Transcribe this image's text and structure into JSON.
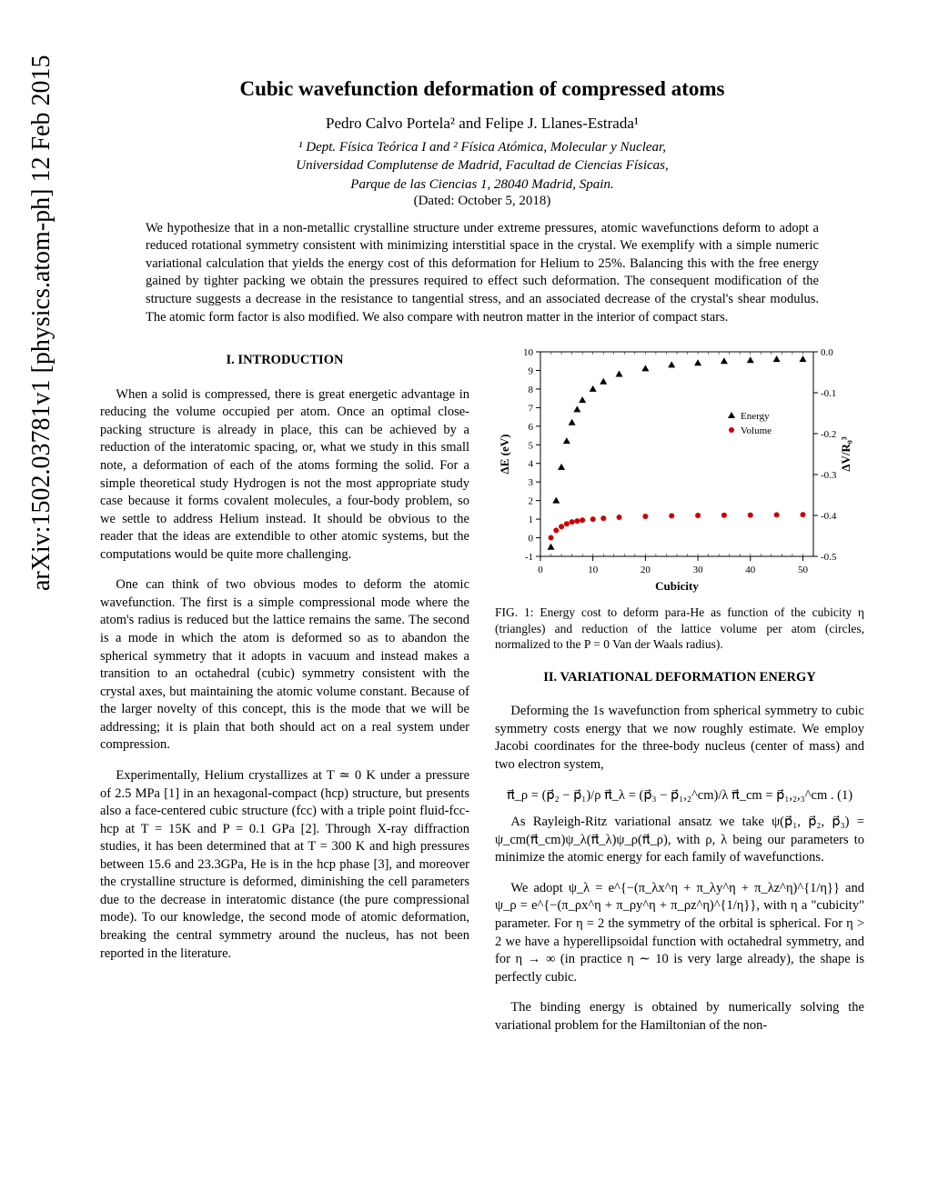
{
  "arxiv_id": "arXiv:1502.03781v1  [physics.atom-ph]  12 Feb 2015",
  "title": "Cubic wavefunction deformation of compressed atoms",
  "authors": "Pedro Calvo Portela² and Felipe J. Llanes-Estrada¹",
  "affil_line1": "¹ Dept. Física Teórica I and ² Física Atómica, Molecular y Nuclear,",
  "affil_line2": "Universidad Complutense de Madrid, Facultad de Ciencias Físicas,",
  "affil_line3": "Parque de las Ciencias 1, 28040 Madrid, Spain.",
  "dated": "(Dated: October 5, 2018)",
  "abstract": "We hypothesize that in a non-metallic crystalline structure under extreme pressures, atomic wavefunctions deform to adopt a reduced rotational symmetry consistent with minimizing interstitial space in the crystal. We exemplify with a simple numeric variational calculation that yields the energy cost of this deformation for Helium to 25%. Balancing this with the free energy gained by tighter packing we obtain the pressures required to effect such deformation. The consequent modification of the structure suggests a decrease in the resistance to tangential stress, and an associated decrease of the crystal's shear modulus. The atomic form factor is also modified. We also compare with neutron matter in the interior of compact stars.",
  "sec1_head": "I.   INTRODUCTION",
  "intro_p1": "When a solid is compressed, there is great energetic advantage in reducing the volume occupied per atom. Once an optimal close-packing structure is already in place, this can be achieved by a reduction of the interatomic spacing, or, what we study in this small note, a deformation of each of the atoms forming the solid. For a simple theoretical study Hydrogen is not the most appropriate study case because it forms covalent molecules, a four-body problem, so we settle to address Helium instead. It should be obvious to the reader that the ideas are extendible to other atomic systems, but the computations would be quite more challenging.",
  "intro_p2": "One can think of two obvious modes to deform the atomic wavefunction. The first is a simple compressional mode where the atom's radius is reduced but the lattice remains the same. The second is a mode in which the atom is deformed so as to abandon the spherical symmetry that it adopts in vacuum and instead makes a transition to an octahedral (cubic) symmetry consistent with the crystal axes, but maintaining the atomic volume constant. Because of the larger novelty of this concept, this is the mode that we will be addressing; it is plain that both should act on a real system under compression.",
  "intro_p3": "Experimentally, Helium crystallizes at T ≃ 0 K under a pressure of 2.5 MPa [1] in an hexagonal-compact (hcp) structure, but presents also a face-centered cubic structure (fcc) with a triple point fluid-fcc-hcp at T = 15K and P = 0.1 GPa [2]. Through X-ray diffraction studies, it has been determined that at T = 300 K and high pressures between 15.6 and 23.3GPa, He is in the hcp phase [3], and moreover the crystalline structure is deformed, diminishing the cell parameters due to the decrease in interatomic distance (the pure compressional mode). To our knowledge, the second mode of atomic deformation, breaking the central symmetry around the nucleus, has not been reported in the literature.",
  "fig1_caption": "FIG. 1: Energy cost to deform para-He as function of the cubicity η (triangles) and reduction of the lattice volume per atom (circles, normalized to the P = 0 Van der Waals radius).",
  "sec2_head": "II.   VARIATIONAL DEFORMATION ENERGY",
  "body_p1": "Deforming the 1s wavefunction from spherical symmetry to cubic symmetry costs energy that we now roughly estimate. We employ Jacobi coordinates for the three-body nucleus (center of mass) and two electron system,",
  "eq1": "π⃗_ρ = (p⃗₂ − p⃗₁)/ρ      π⃗_λ = (p⃗₃ − p⃗₁,₂^cm)/λ      π⃗_cm = p⃗₁,₂,₃^cm .  (1)",
  "body_p2a": "As Rayleigh-Ritz variational ansatz we take ψ(p⃗₁, p⃗₂, p⃗₃) = ψ_cm(π⃗_cm)ψ_λ(π⃗_λ)ψ_ρ(π⃗_ρ), with ρ, λ being our parameters to minimize the atomic energy for each family of wavefunctions.",
  "body_p2b": "We adopt  ψ_λ = e^{−(π_λx^η + π_λy^η + π_λz^η)^{1/η}}  and  ψ_ρ = e^{−(π_ρx^η + π_ρy^η + π_ρz^η)^{1/η}}, with η a \"cubicity\" parameter. For η = 2 the symmetry of the orbital is spherical. For η > 2 we have a hyperellipsoidal function with octahedral symmetry, and for η → ∞ (in practice η ∼ 10 is very large already), the shape is perfectly cubic.",
  "body_p3": "The binding energy is obtained by numerically solving the variational problem for the Hamiltonian of the non-",
  "chart": {
    "type": "scatter",
    "xlim": [
      0,
      52
    ],
    "ylim_left": [
      -1,
      10
    ],
    "ylim_right": [
      -0.5,
      0.0
    ],
    "xticks": [
      0,
      10,
      20,
      30,
      40,
      50
    ],
    "yticks_left": [
      -1,
      0,
      1,
      2,
      3,
      4,
      5,
      6,
      7,
      8,
      9,
      10
    ],
    "yticks_right": [
      0.0,
      -0.1,
      -0.2,
      -0.3,
      -0.4,
      -0.5
    ],
    "xlabel": "Cubicity",
    "ylabel_left": "ΔE (eV)",
    "ylabel_right": "ΔV/R₀³",
    "energy_color": "#000000",
    "volume_color": "#cc0000",
    "background_color": "#ffffff",
    "axis_color": "#000000",
    "tick_fontsize": 11,
    "label_fontsize": 13,
    "legend_items": [
      "Energy",
      "Volume"
    ],
    "energy_marker": "triangle",
    "volume_marker": "circle",
    "energy_data": [
      {
        "x": 2,
        "y": -0.5
      },
      {
        "x": 3,
        "y": 2.0
      },
      {
        "x": 4,
        "y": 3.8
      },
      {
        "x": 5,
        "y": 5.2
      },
      {
        "x": 6,
        "y": 6.2
      },
      {
        "x": 7,
        "y": 6.9
      },
      {
        "x": 8,
        "y": 7.4
      },
      {
        "x": 10,
        "y": 8.0
      },
      {
        "x": 12,
        "y": 8.4
      },
      {
        "x": 15,
        "y": 8.8
      },
      {
        "x": 20,
        "y": 9.1
      },
      {
        "x": 25,
        "y": 9.3
      },
      {
        "x": 30,
        "y": 9.4
      },
      {
        "x": 35,
        "y": 9.5
      },
      {
        "x": 40,
        "y": 9.55
      },
      {
        "x": 45,
        "y": 9.6
      },
      {
        "x": 50,
        "y": 9.6
      }
    ],
    "volume_data": [
      {
        "x": 2,
        "y": 0.0
      },
      {
        "x": 3,
        "y": 0.4
      },
      {
        "x": 4,
        "y": 0.6
      },
      {
        "x": 5,
        "y": 0.75
      },
      {
        "x": 6,
        "y": 0.85
      },
      {
        "x": 7,
        "y": 0.9
      },
      {
        "x": 8,
        "y": 0.95
      },
      {
        "x": 10,
        "y": 1.0
      },
      {
        "x": 12,
        "y": 1.05
      },
      {
        "x": 15,
        "y": 1.1
      },
      {
        "x": 20,
        "y": 1.15
      },
      {
        "x": 25,
        "y": 1.18
      },
      {
        "x": 30,
        "y": 1.2
      },
      {
        "x": 35,
        "y": 1.21
      },
      {
        "x": 40,
        "y": 1.22
      },
      {
        "x": 45,
        "y": 1.23
      },
      {
        "x": 50,
        "y": 1.24
      }
    ]
  }
}
